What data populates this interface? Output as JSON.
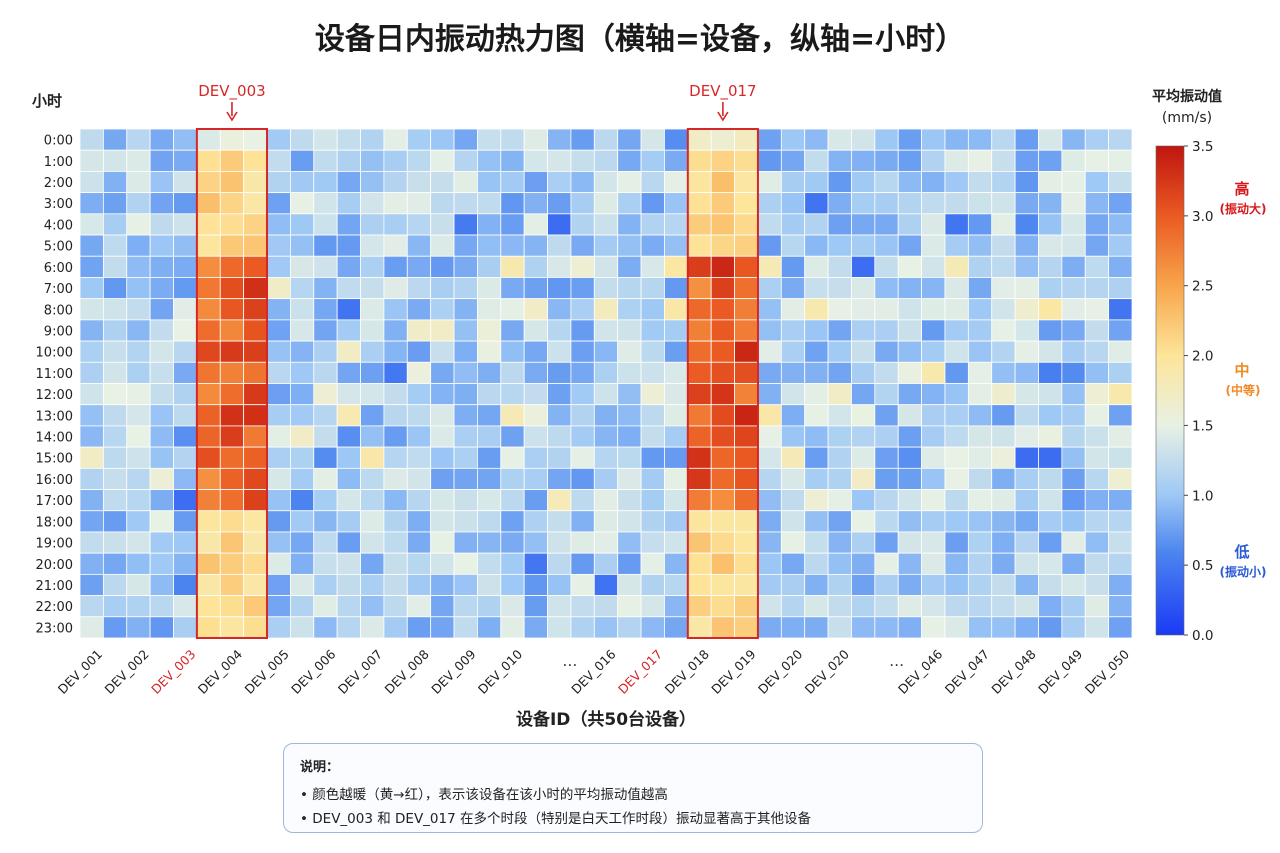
{
  "title": "设备日内振动热力图（横轴=设备，纵轴=小时）",
  "colors": {
    "high_label": "#d7191c",
    "mid_label": "#f08a24",
    "low_label": "#2a5ad8",
    "highlight": "#d62728"
  },
  "chart_data": {
    "type": "heatmap",
    "ylabel": "小时",
    "xlabel": "设备ID（共50台设备）",
    "y_categories": [
      "0:00",
      "1:00",
      "2:00",
      "3:00",
      "4:00",
      "5:00",
      "6:00",
      "7:00",
      "8:00",
      "9:00",
      "10:00",
      "11:00",
      "12:00",
      "13:00",
      "14:00",
      "15:00",
      "16:00",
      "17:00",
      "18:00",
      "19:00",
      "20:00",
      "21:00",
      "22:00",
      "23:00"
    ],
    "x_tick_labels": [
      "DEV_001",
      "DEV_002",
      "DEV_003",
      "DEV_004",
      "DEV_005",
      "DEV_006",
      "DEV_007",
      "DEV_008",
      "DEV_009",
      "DEV_010",
      "…",
      "DEV_016",
      "DEV_017",
      "DEV_018",
      "DEV_019",
      "DEV_020",
      "DEV_020",
      "…",
      "DEV_046",
      "DEV_047",
      "DEV_048",
      "DEV_049",
      "DEV_050"
    ],
    "highlighted_tick_labels": [
      "DEV_003",
      "DEV_017"
    ],
    "n_columns": 45,
    "highlight_columns": [
      {
        "label": "DEV_003",
        "columns": [
          5,
          6,
          7
        ]
      },
      {
        "label": "DEV_017",
        "columns": [
          26,
          27,
          28
        ]
      }
    ],
    "colorbar": {
      "title": "平均振动值",
      "unit": "(mm/s)",
      "range": [
        0.0,
        3.5
      ],
      "ticks": [
        "0.0",
        "0.5",
        "1.0",
        "1.5",
        "2.0",
        "2.5",
        "3.0",
        "3.5"
      ],
      "stops": [
        {
          "v": 0.0,
          "c": "#1a3af5"
        },
        {
          "v": 0.6,
          "c": "#4d86ef"
        },
        {
          "v": 1.0,
          "c": "#9ec8f5"
        },
        {
          "v": 1.5,
          "c": "#e8f1e4"
        },
        {
          "v": 2.0,
          "c": "#fde59a"
        },
        {
          "v": 2.5,
          "c": "#f8a54b"
        },
        {
          "v": 3.0,
          "c": "#ea5a22"
        },
        {
          "v": 3.5,
          "c": "#c01510"
        }
      ],
      "annotations": [
        {
          "label": "高",
          "sub": "(振动大)",
          "v": 3.1
        },
        {
          "label": "中",
          "sub": "(中等)",
          "v": 1.8
        },
        {
          "label": "低",
          "sub": "(振动小)",
          "v": 0.5
        }
      ]
    },
    "typical_values": {
      "normal": [
        0.7,
        1.5
      ],
      "highlight_night": [
        1.9,
        2.3
      ],
      "highlight_day": [
        2.6,
        3.4
      ]
    }
  },
  "legend": {
    "title": "说明：",
    "items": [
      "颜色越暖（黄→红），表示该设备在该小时的平均振动值越高",
      "DEV_003 和 DEV_017 在多个时段（特别是白天工作时段）振动显著高于其他设备"
    ]
  }
}
